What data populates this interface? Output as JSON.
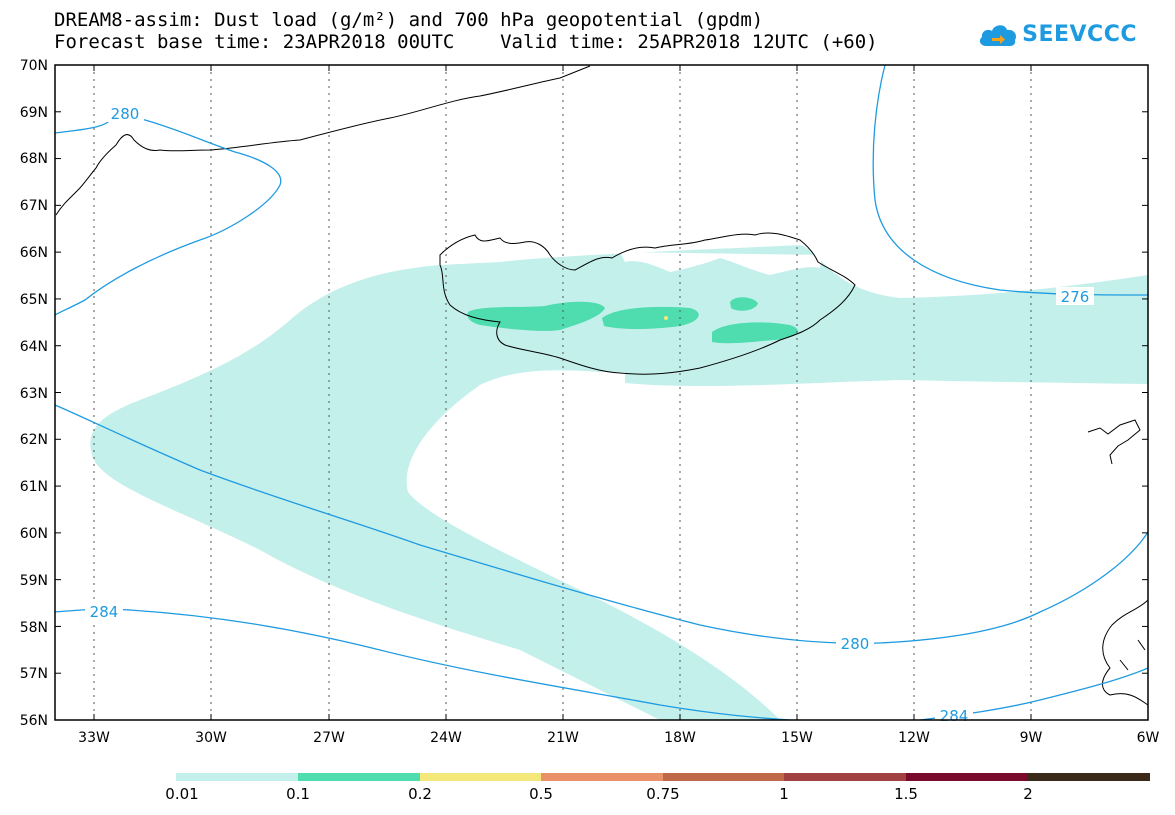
{
  "title": {
    "line1": "DREAM8-assim: Dust load (g/m²) and 700 hPa geopotential (gpdm)",
    "line2": "Forecast base time: 23APR2018 00UTC    Valid time: 25APR2018 12UTC (+60)"
  },
  "logo": {
    "text": "SEEVCCC",
    "icon": "cloud-icon"
  },
  "axes": {
    "lat_labels": [
      "70N",
      "69N",
      "68N",
      "67N",
      "66N",
      "65N",
      "64N",
      "63N",
      "62N",
      "61N",
      "60N",
      "59N",
      "58N",
      "57N",
      "56N"
    ],
    "lon_labels": [
      "33W",
      "30W",
      "27W",
      "24W",
      "21W",
      "18W",
      "15W",
      "12W",
      "9W",
      "6W"
    ]
  },
  "contours": {
    "color": "#1e9be0",
    "labels": [
      "280",
      "276",
      "284",
      "280",
      "284"
    ]
  },
  "dust_colors": {
    "c001": "#c4f0ec",
    "c01": "#4fdcae",
    "c02": "#f5e87a"
  },
  "legend": {
    "colors": [
      "#c4f0ec",
      "#4fdcae",
      "#f5e87a",
      "#e9926a",
      "#c0684a",
      "#a04040",
      "#7a0a2a",
      "#3a2818",
      "#8c6aa0"
    ],
    "labels": [
      "0.01",
      "0.1",
      "0.2",
      "0.5",
      "0.75",
      "1",
      "1.5",
      "2"
    ]
  }
}
